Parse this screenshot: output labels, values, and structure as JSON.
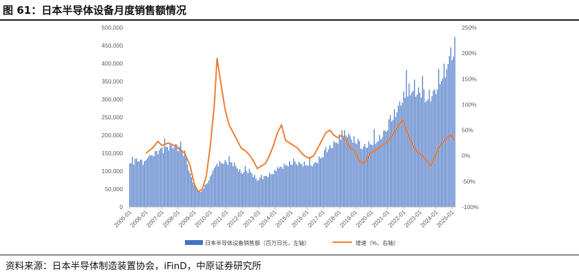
{
  "title": "图 61：日本半导体设备月度销售额情况",
  "source": "资料来源：日本半导体制造装置协会，iFinD，中原证券研究所",
  "colors": {
    "bar": "#4472C4",
    "line": "#ED7D31",
    "axis": "#bfbfbf",
    "text": "#595959"
  },
  "chart_data": {
    "type": "bar+line",
    "x_ticks": [
      "2005-01",
      "2006-01",
      "2007-01",
      "2008-01",
      "2009-01",
      "2010-01",
      "2011-01",
      "2012-01",
      "2013-01",
      "2014-01",
      "2015-01",
      "2016-01",
      "2017-01",
      "2018-01",
      "2019-01",
      "2020-01",
      "2021-01",
      "2022-01",
      "2023-01",
      "2024-01",
      "2025-01"
    ],
    "y_left": {
      "ticks": [
        "0",
        "50,000",
        "100,000",
        "150,000",
        "200,000",
        "250,000",
        "300,000",
        "350,000",
        "400,000",
        "450,000",
        "500,000"
      ],
      "min": 0,
      "max": 500000
    },
    "y_right": {
      "ticks": [
        "-100%",
        "-50%",
        "0%",
        "50%",
        "100%",
        "150%",
        "200%",
        "250%"
      ],
      "min": -100,
      "max": 250
    },
    "legend": [
      "日本半导体设备销售额（百万日元，左轴）",
      "增速（%，右轴）"
    ],
    "bar_series": {
      "name": "日本半导体设备销售额（百万日元，左轴）",
      "start": "2005-01",
      "anchors": [
        [
          "2005-01",
          118000
        ],
        [
          "2005-06",
          132000
        ],
        [
          "2005-12",
          125000
        ],
        [
          "2006-06",
          145000
        ],
        [
          "2006-12",
          160000
        ],
        [
          "2007-06",
          168000
        ],
        [
          "2007-12",
          170000
        ],
        [
          "2008-06",
          150000
        ],
        [
          "2008-10",
          90000
        ],
        [
          "2009-03",
          45000
        ],
        [
          "2009-06",
          42000
        ],
        [
          "2009-12",
          75000
        ],
        [
          "2010-06",
          120000
        ],
        [
          "2010-12",
          125000
        ],
        [
          "2011-06",
          122000
        ],
        [
          "2011-12",
          95000
        ],
        [
          "2012-06",
          102000
        ],
        [
          "2012-12",
          75000
        ],
        [
          "2013-06",
          85000
        ],
        [
          "2013-12",
          95000
        ],
        [
          "2014-06",
          112000
        ],
        [
          "2014-12",
          120000
        ],
        [
          "2015-06",
          122000
        ],
        [
          "2015-12",
          118000
        ],
        [
          "2016-06",
          118000
        ],
        [
          "2016-12",
          140000
        ],
        [
          "2017-06",
          165000
        ],
        [
          "2017-12",
          185000
        ],
        [
          "2018-06",
          205000
        ],
        [
          "2018-12",
          185000
        ],
        [
          "2019-06",
          165000
        ],
        [
          "2019-12",
          175000
        ],
        [
          "2020-06",
          185000
        ],
        [
          "2020-12",
          215000
        ],
        [
          "2021-06",
          255000
        ],
        [
          "2021-12",
          300000
        ],
        [
          "2022-06",
          325000
        ],
        [
          "2022-12",
          320000
        ],
        [
          "2023-06",
          300000
        ],
        [
          "2023-12",
          320000
        ],
        [
          "2024-06",
          365000
        ],
        [
          "2024-12",
          410000
        ],
        [
          "2025-03",
          425000
        ]
      ],
      "peaks": [
        [
          "2008-03",
          182000
        ],
        [
          "2022-03",
          382000
        ],
        [
          "2022-09",
          355000
        ],
        [
          "2023-03",
          365000
        ],
        [
          "2024-03",
          385000
        ],
        [
          "2024-12",
          445000
        ],
        [
          "2025-02",
          420000
        ]
      ]
    },
    "line_series": {
      "name": "增速（%，右轴）",
      "points": [
        [
          "2006-01",
          5
        ],
        [
          "2006-06",
          15
        ],
        [
          "2006-10",
          28
        ],
        [
          "2007-01",
          20
        ],
        [
          "2007-06",
          25
        ],
        [
          "2007-10",
          20
        ],
        [
          "2008-01",
          15
        ],
        [
          "2008-06",
          5
        ],
        [
          "2008-10",
          -20
        ],
        [
          "2009-01",
          -55
        ],
        [
          "2009-04",
          -70
        ],
        [
          "2009-07",
          -65
        ],
        [
          "2009-10",
          -40
        ],
        [
          "2010-01",
          20
        ],
        [
          "2010-04",
          100
        ],
        [
          "2010-06",
          190
        ],
        [
          "2010-09",
          140
        ],
        [
          "2010-12",
          90
        ],
        [
          "2011-03",
          60
        ],
        [
          "2011-06",
          45
        ],
        [
          "2011-09",
          30
        ],
        [
          "2011-12",
          15
        ],
        [
          "2012-03",
          10
        ],
        [
          "2012-06",
          2
        ],
        [
          "2012-09",
          -10
        ],
        [
          "2012-12",
          -25
        ],
        [
          "2013-03",
          -20
        ],
        [
          "2013-06",
          -15
        ],
        [
          "2013-09",
          0
        ],
        [
          "2013-12",
          20
        ],
        [
          "2014-03",
          45
        ],
        [
          "2014-06",
          60
        ],
        [
          "2014-09",
          30
        ],
        [
          "2014-12",
          25
        ],
        [
          "2015-03",
          20
        ],
        [
          "2015-06",
          15
        ],
        [
          "2015-09",
          5
        ],
        [
          "2015-12",
          -2
        ],
        [
          "2016-03",
          -5
        ],
        [
          "2016-06",
          0
        ],
        [
          "2016-09",
          15
        ],
        [
          "2016-12",
          30
        ],
        [
          "2017-03",
          45
        ],
        [
          "2017-06",
          50
        ],
        [
          "2017-09",
          40
        ],
        [
          "2017-12",
          35
        ],
        [
          "2018-03",
          40
        ],
        [
          "2018-06",
          30
        ],
        [
          "2018-09",
          15
        ],
        [
          "2018-12",
          10
        ],
        [
          "2019-03",
          -5
        ],
        [
          "2019-06",
          -15
        ],
        [
          "2019-09",
          -10
        ],
        [
          "2019-12",
          5
        ],
        [
          "2020-03",
          10
        ],
        [
          "2020-06",
          15
        ],
        [
          "2020-09",
          20
        ],
        [
          "2020-12",
          25
        ],
        [
          "2021-03",
          35
        ],
        [
          "2021-06",
          45
        ],
        [
          "2021-09",
          60
        ],
        [
          "2021-12",
          70
        ],
        [
          "2022-03",
          50
        ],
        [
          "2022-06",
          30
        ],
        [
          "2022-09",
          15
        ],
        [
          "2022-12",
          5
        ],
        [
          "2023-03",
          0
        ],
        [
          "2023-06",
          -10
        ],
        [
          "2023-09",
          -20
        ],
        [
          "2023-12",
          -5
        ],
        [
          "2024-03",
          15
        ],
        [
          "2024-06",
          25
        ],
        [
          "2024-09",
          35
        ],
        [
          "2024-12",
          40
        ],
        [
          "2025-03",
          30
        ]
      ]
    }
  }
}
